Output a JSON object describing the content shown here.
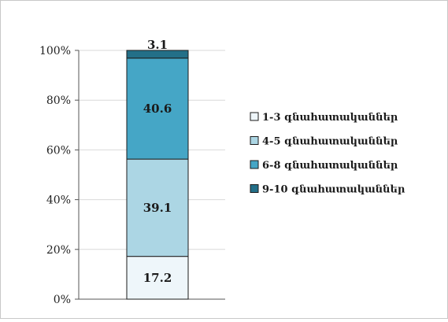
{
  "chart_data": {
    "type": "bar",
    "stacked": true,
    "title": "",
    "xlabel": "",
    "ylabel": "",
    "ylim": [
      0,
      100
    ],
    "yticks": [
      "0%",
      "20%",
      "40%",
      "60%",
      "80%",
      "100%"
    ],
    "grid": true,
    "legend_position": "right",
    "categories": [
      ""
    ],
    "series": [
      {
        "name": "1-3 գնահատականներ",
        "values": [
          17.2
        ],
        "label": "17.2",
        "color": "#eef6fa"
      },
      {
        "name": "4-5 գնահատականներ",
        "values": [
          39.1
        ],
        "label": "39.1",
        "color": "#acd6e4"
      },
      {
        "name": "6-8 գնահատականներ",
        "values": [
          40.6
        ],
        "label": "40.6",
        "color": "#45a6c6"
      },
      {
        "name": "9-10 գնահատականներ",
        "values": [
          3.1
        ],
        "label": "3.1",
        "color": "#236f88"
      }
    ]
  }
}
